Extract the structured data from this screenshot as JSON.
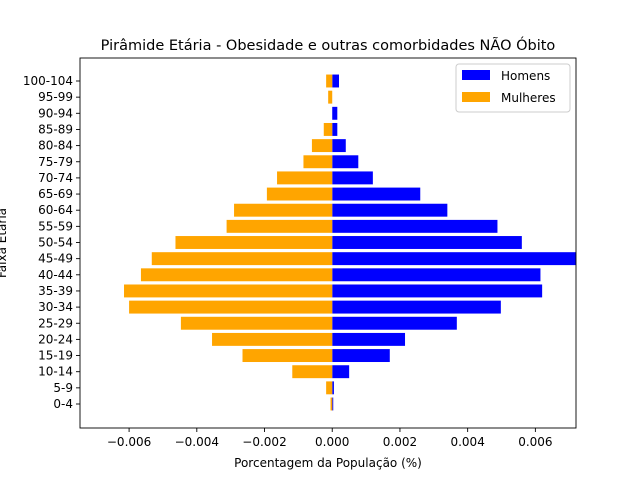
{
  "chart_data": {
    "type": "bar",
    "orientation": "horizontal",
    "title": "Pirâmide Etária - Obesidade e outras comorbidades NÃO Óbito",
    "xlabel": "Porcentagem da População (%)",
    "ylabel": "Faixa Etária",
    "xlim": [
      -0.00745,
      0.0072
    ],
    "xticks": [
      -0.006,
      -0.004,
      -0.002,
      0.0,
      0.002,
      0.004,
      0.006
    ],
    "xtick_labels": [
      "−0.006",
      "−0.004",
      "−0.002",
      "0.000",
      "0.002",
      "0.004",
      "0.006"
    ],
    "categories": [
      "0-4",
      "5-9",
      "10-14",
      "15-19",
      "20-24",
      "25-29",
      "30-34",
      "35-39",
      "40-44",
      "45-49",
      "50-54",
      "55-59",
      "60-64",
      "65-69",
      "70-74",
      "75-79",
      "80-84",
      "85-89",
      "90-94",
      "95-99",
      "100-104"
    ],
    "series": [
      {
        "name": "Homens",
        "color": "#0000ff",
        "values": [
          3e-05,
          5e-05,
          0.0005,
          0.0017,
          0.00215,
          0.00368,
          0.00498,
          0.0062,
          0.00615,
          0.0072,
          0.0056,
          0.00488,
          0.0034,
          0.0026,
          0.0012,
          0.00077,
          0.0004,
          0.00015,
          0.00015,
          0.0,
          0.0002
        ]
      },
      {
        "name": "Mulheres",
        "color": "#ffa500",
        "values": [
          -5e-05,
          -0.00018,
          -0.00118,
          -0.00265,
          -0.00355,
          -0.00447,
          -0.006,
          -0.00615,
          -0.00565,
          -0.00533,
          -0.00463,
          -0.00312,
          -0.0029,
          -0.00193,
          -0.00163,
          -0.00085,
          -0.0006,
          -0.00025,
          0.0,
          -0.00012,
          -0.00018
        ]
      }
    ],
    "legend_position": "top-right",
    "grid": false
  }
}
